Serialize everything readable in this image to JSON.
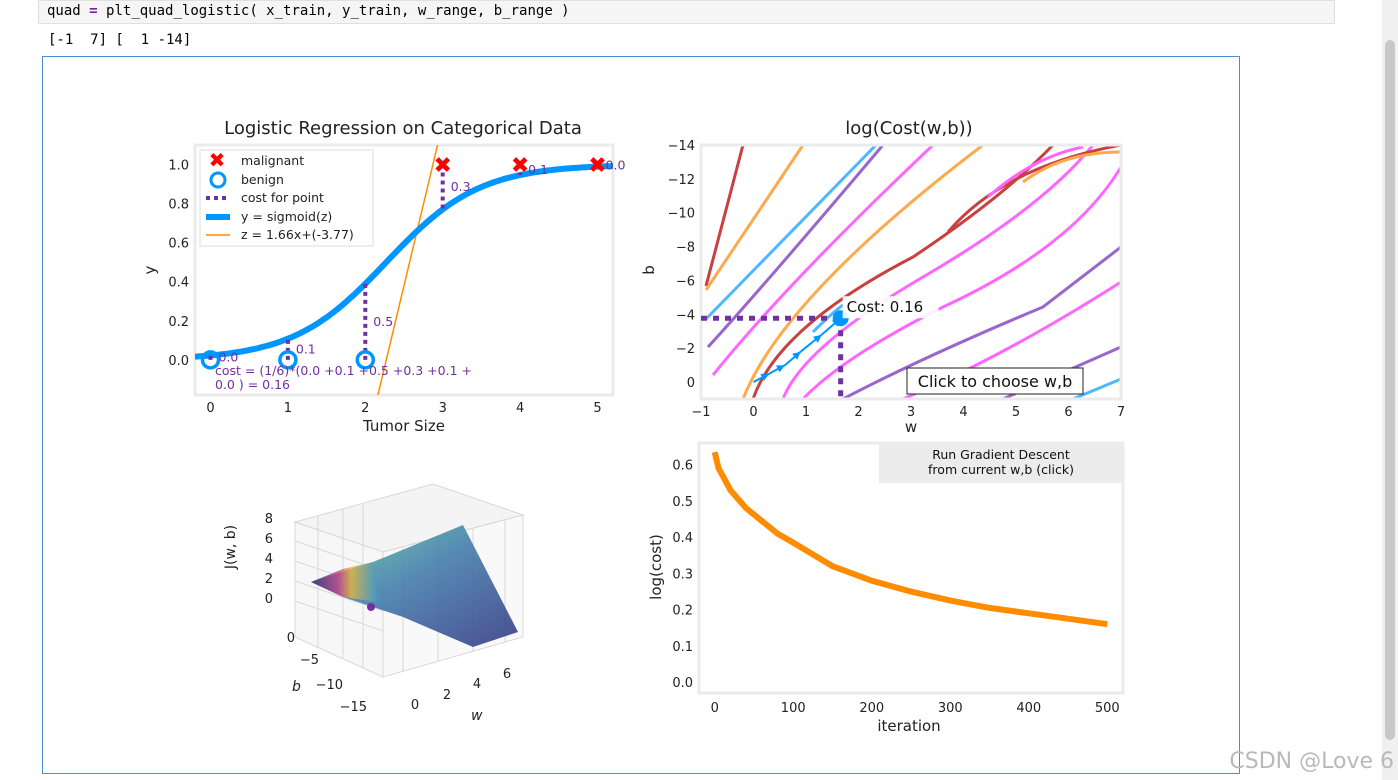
{
  "code": {
    "var": "quad",
    "eq": "=",
    "call": "plt_quad_logistic( x_train, y_train, w_range, b_range )"
  },
  "output": "[-1  7] [  1 -14]",
  "watermark": "CSDN @Love 6",
  "colors": {
    "blue": "#0096ff",
    "red": "#ff0000",
    "orange": "#ff8c00",
    "purple": "#7030a0",
    "magenta": "#ff40ff"
  },
  "chart_data": [
    {
      "type": "scatter",
      "title": "Logistic Regression on Categorical Data",
      "xlabel": "Tumor Size",
      "ylabel": "y",
      "xlim": [
        -0.2,
        5.2
      ],
      "ylim": [
        -0.18,
        1.1
      ],
      "xticks": [
        "0",
        "1",
        "2",
        "3",
        "4",
        "5"
      ],
      "yticks": [
        "0.0",
        "0.2",
        "0.4",
        "0.6",
        "0.8",
        "1.0"
      ],
      "malignant_x": [
        3,
        4,
        5
      ],
      "malignant_y": [
        1,
        1,
        1
      ],
      "benign_x": [
        0,
        1,
        2
      ],
      "benign_y": [
        0,
        0,
        0
      ],
      "sigmoid": {
        "w": 1.66,
        "b": -3.77
      },
      "point_costs": [
        "0.0",
        "0.1",
        "0.5",
        "0.3",
        "0.1",
        "0.0"
      ],
      "legend": [
        "malignant",
        "benign",
        "cost for point",
        "y = sigmoid(z)",
        "z = 1.66x+(-3.77)"
      ],
      "cost_text": [
        "cost = (1/6)*(0.0 +0.1 +0.5 +0.3 +0.1 +",
        "0.0 ) = 0.16"
      ]
    },
    {
      "type": "contour",
      "title": "log(Cost(w,b))",
      "xlabel": "w",
      "ylabel": "b",
      "xlim": [
        -1,
        7
      ],
      "ylim": [
        1,
        -14
      ],
      "xticks": [
        "−1",
        "0",
        "1",
        "2",
        "3",
        "4",
        "5",
        "6",
        "7"
      ],
      "yticks": [
        "−14",
        "−12",
        "−10",
        "−8",
        "−6",
        "−4",
        "−2",
        "0"
      ],
      "current_w": 1.66,
      "current_b": -3.77,
      "cost_annotation": "Cost: 0.16",
      "button": "Click to choose w,b",
      "path_w": [
        0,
        0.3,
        0.6,
        0.9,
        1.3,
        1.66
      ],
      "path_b": [
        0,
        -0.5,
        -1.0,
        -1.8,
        -2.8,
        -3.77
      ]
    },
    {
      "type": "surface",
      "zlabel": "J(w, b)",
      "xlabel": "w",
      "ylabel": "b",
      "zticks": [
        "8",
        "6",
        "4",
        "2",
        "0"
      ],
      "bticks": [
        "0",
        "−5",
        "−10",
        "−15"
      ],
      "wticks": [
        "0",
        "2",
        "4",
        "6"
      ]
    },
    {
      "type": "line",
      "xlabel": "iteration",
      "ylabel": "log(cost)",
      "xlim": [
        -20,
        520
      ],
      "ylim": [
        -0.03,
        0.66
      ],
      "xticks": [
        "0",
        "100",
        "200",
        "300",
        "400",
        "500"
      ],
      "yticks": [
        "0.0",
        "0.1",
        "0.2",
        "0.3",
        "0.4",
        "0.5",
        "0.6"
      ],
      "x": [
        0,
        5,
        10,
        20,
        40,
        60,
        80,
        100,
        150,
        200,
        250,
        300,
        350,
        400,
        450,
        500
      ],
      "y": [
        0.635,
        0.59,
        0.57,
        0.53,
        0.48,
        0.445,
        0.41,
        0.385,
        0.32,
        0.28,
        0.25,
        0.225,
        0.205,
        0.19,
        0.175,
        0.16
      ],
      "button": [
        "Run Gradient Descent",
        "from current w,b (click)"
      ]
    }
  ]
}
